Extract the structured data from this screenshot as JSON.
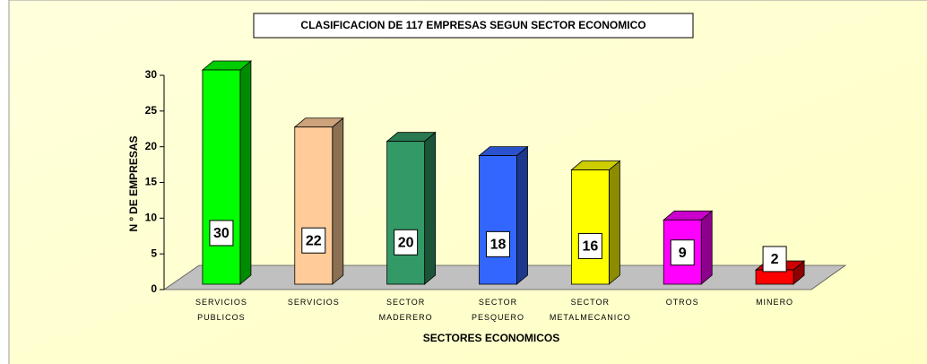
{
  "chart_data": {
    "type": "bar3d",
    "title": "CLASIFICACION DE 117 EMPRESAS SEGUN  SECTOR   ECONOMICO",
    "x_label": "SECTORES ECONOMICOS",
    "y_label": "N º DE EMPRESAS",
    "categories": [
      "SERVICIOS PUBLICOS",
      "SERVICIOS",
      "SECTOR MADERERO",
      "SECTOR PESQUERO",
      "SECTOR METALMECANICO",
      "OTROS",
      "MINERO"
    ],
    "values": [
      30,
      22,
      20,
      18,
      16,
      9,
      2
    ],
    "colors": [
      "#00ff00",
      "#ffcc99",
      "#339966",
      "#3366ff",
      "#ffff00",
      "#ff00ff",
      "#ff0000"
    ],
    "ylim": [
      0,
      30
    ],
    "yticks": [
      0,
      5,
      10,
      15,
      20,
      25,
      30
    ]
  }
}
